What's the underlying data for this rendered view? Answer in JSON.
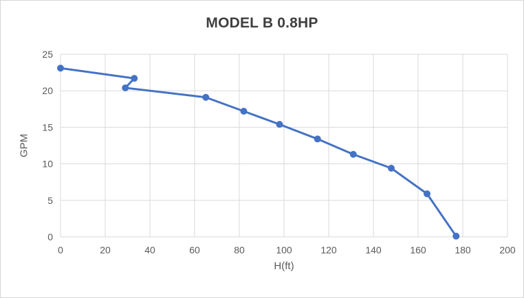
{
  "frame": {
    "background": "#ffffff",
    "border_color": "#d6d6d6"
  },
  "chart_data": {
    "type": "line",
    "title": "MODEL B 0.8HP",
    "xlabel": "H(ft)",
    "ylabel": "GPM",
    "series": [
      {
        "name": "MODEL B 0.8HP",
        "x": [
          0,
          33,
          29,
          65,
          82,
          98,
          115,
          131,
          148,
          164,
          177
        ],
        "y": [
          23.1,
          21.7,
          20.4,
          19.1,
          17.2,
          15.4,
          13.4,
          11.3,
          9.4,
          5.9,
          0.1
        ],
        "color": "#4472C4",
        "marker": "circle",
        "marker_radius": 5,
        "line_width": 3
      }
    ],
    "xlim": [
      0,
      200
    ],
    "ylim": [
      0,
      25
    ],
    "x_ticks": [
      0,
      20,
      40,
      60,
      80,
      100,
      120,
      140,
      160,
      180,
      200
    ],
    "y_ticks": [
      0,
      5,
      10,
      15,
      20,
      25
    ],
    "grid": true,
    "legend": "none",
    "gridline_color": "#d9d9d9",
    "axis_line_color": "#d9d9d9",
    "tick_label_color": "#595959",
    "axis_label_color": "#595959",
    "title_color": "#3f3f3f"
  }
}
